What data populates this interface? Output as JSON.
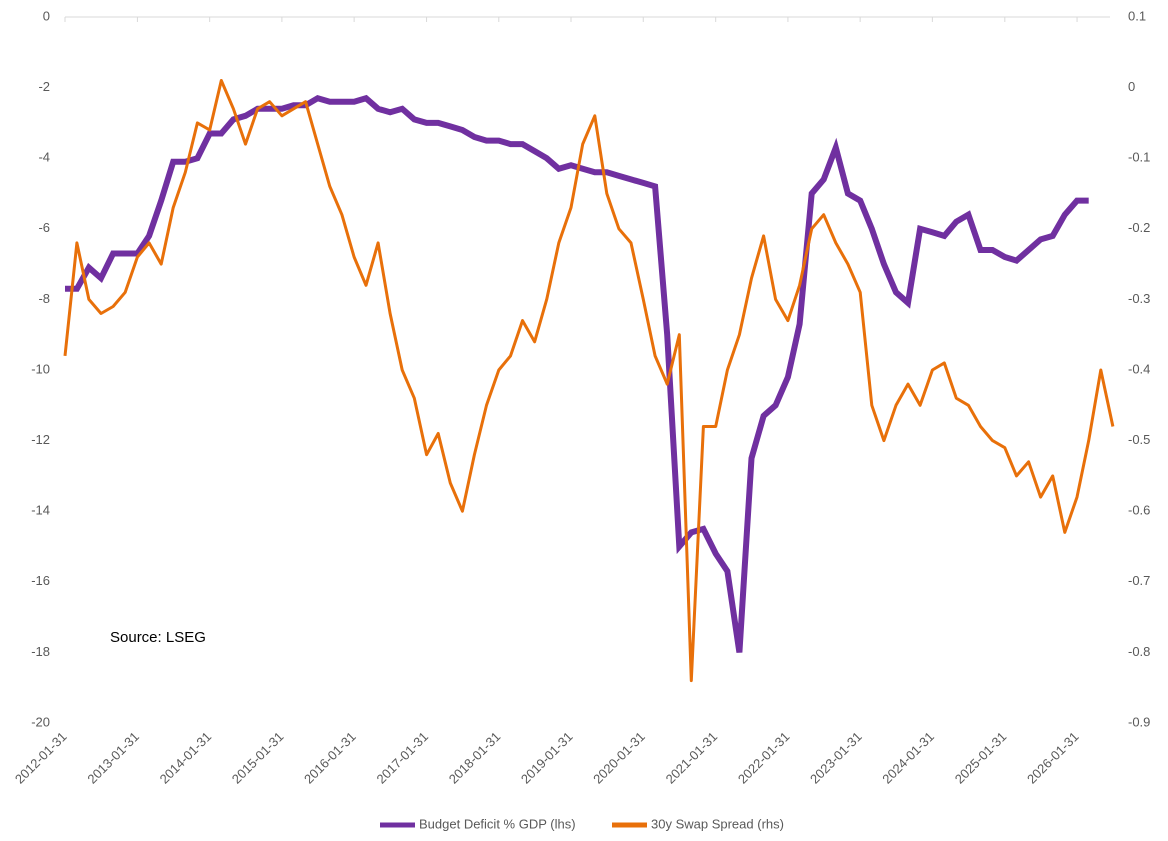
{
  "chart_data": {
    "type": "line",
    "annotations": [
      "Source: LSEG"
    ],
    "x": [
      "2012-01-31",
      "2012-03-31",
      "2012-05-31",
      "2012-07-31",
      "2012-09-30",
      "2012-11-30",
      "2013-01-31",
      "2013-03-31",
      "2013-05-31",
      "2013-07-31",
      "2013-09-30",
      "2013-11-30",
      "2014-01-31",
      "2014-03-31",
      "2014-05-31",
      "2014-07-31",
      "2014-09-30",
      "2014-11-30",
      "2015-01-31",
      "2015-03-31",
      "2015-05-31",
      "2015-07-31",
      "2015-09-30",
      "2015-11-30",
      "2016-01-31",
      "2016-03-31",
      "2016-05-31",
      "2016-07-31",
      "2016-09-30",
      "2016-11-30",
      "2017-01-31",
      "2017-03-31",
      "2017-05-31",
      "2017-07-31",
      "2017-09-30",
      "2017-11-30",
      "2018-01-31",
      "2018-03-31",
      "2018-05-31",
      "2018-07-31",
      "2018-09-30",
      "2018-11-30",
      "2019-01-31",
      "2019-03-31",
      "2019-05-31",
      "2019-07-31",
      "2019-09-30",
      "2019-11-30",
      "2020-01-31",
      "2020-03-31",
      "2020-05-31",
      "2020-07-31",
      "2020-09-30",
      "2020-11-30",
      "2021-01-31",
      "2021-03-31",
      "2021-05-31",
      "2021-07-31",
      "2021-09-30",
      "2021-11-30",
      "2022-01-31",
      "2022-03-31",
      "2022-05-31",
      "2022-07-31",
      "2022-09-30",
      "2022-11-30",
      "2023-01-31",
      "2023-03-31",
      "2023-05-31",
      "2023-07-31",
      "2023-09-30",
      "2023-11-30",
      "2024-01-31",
      "2024-03-31",
      "2024-05-31",
      "2024-07-31",
      "2024-09-30",
      "2024-11-30",
      "2025-01-31",
      "2025-03-31",
      "2025-05-31",
      "2025-07-31",
      "2025-09-30",
      "2025-11-30",
      "2026-01-31",
      "2026-03-31",
      "2026-05-31",
      "2026-07-31"
    ],
    "series": [
      {
        "name": "Budget Deficit % GDP (lhs)",
        "color": "#7030a0",
        "axis": "y",
        "values": [
          -7.7,
          -7.7,
          -7.1,
          -7.4,
          -6.7,
          -6.7,
          -6.7,
          -6.2,
          -5.2,
          -4.1,
          -4.1,
          -4.0,
          -3.3,
          -3.3,
          -2.9,
          -2.8,
          -2.6,
          -2.6,
          -2.6,
          -2.5,
          -2.5,
          -2.3,
          -2.4,
          -2.4,
          -2.4,
          -2.3,
          -2.6,
          -2.7,
          -2.6,
          -2.9,
          -3.0,
          -3.0,
          -3.1,
          -3.2,
          -3.4,
          -3.5,
          -3.5,
          -3.6,
          -3.6,
          -3.8,
          -4.0,
          -4.3,
          -4.2,
          -4.3,
          -4.4,
          -4.4,
          -4.5,
          -4.6,
          -4.7,
          -4.8,
          -9.0,
          -15.0,
          -14.6,
          -14.5,
          -15.2,
          -15.7,
          -18.0,
          -12.5,
          -11.3,
          -11.0,
          -10.2,
          -8.7,
          -5.0,
          -4.6,
          -3.7,
          -5.0,
          -5.2,
          -6.0,
          -7.0,
          -7.8,
          -8.1,
          -6.0,
          -6.1,
          -6.2,
          -5.8,
          -5.6,
          -6.6,
          -6.6,
          -6.8,
          -6.9,
          -6.6,
          -6.3,
          -6.2,
          -5.6,
          -5.2,
          -5.2,
          null,
          null
        ]
      },
      {
        "name": "30y Swap Spread (rhs)",
        "color": "#e8700a",
        "axis": "y2",
        "values": [
          -0.38,
          -0.22,
          -0.3,
          -0.32,
          -0.31,
          -0.29,
          -0.24,
          -0.22,
          -0.25,
          -0.17,
          -0.12,
          -0.05,
          -0.06,
          0.01,
          -0.03,
          -0.08,
          -0.03,
          -0.02,
          -0.04,
          -0.03,
          -0.02,
          -0.08,
          -0.14,
          -0.18,
          -0.24,
          -0.28,
          -0.22,
          -0.32,
          -0.4,
          -0.44,
          -0.52,
          -0.49,
          -0.56,
          -0.6,
          -0.52,
          -0.45,
          -0.4,
          -0.38,
          -0.33,
          -0.36,
          -0.3,
          -0.22,
          -0.17,
          -0.08,
          -0.04,
          -0.15,
          -0.2,
          -0.22,
          -0.3,
          -0.38,
          -0.42,
          -0.35,
          -0.84,
          -0.48,
          -0.48,
          -0.4,
          -0.35,
          -0.27,
          -0.21,
          -0.3,
          -0.33,
          -0.28,
          -0.2,
          -0.18,
          -0.22,
          -0.25,
          -0.29,
          -0.45,
          -0.5,
          -0.45,
          -0.42,
          -0.45,
          -0.4,
          -0.39,
          -0.44,
          -0.45,
          -0.48,
          -0.5,
          -0.51,
          -0.55,
          -0.53,
          -0.58,
          -0.55,
          -0.63,
          -0.58,
          -0.5,
          -0.4,
          -0.48
        ]
      }
    ],
    "xlim": [
      "2012-01-31",
      "2026-08-31"
    ],
    "xticks": [
      "2012-01-31",
      "2013-01-31",
      "2014-01-31",
      "2015-01-31",
      "2016-01-31",
      "2017-01-31",
      "2018-01-31",
      "2019-01-31",
      "2020-01-31",
      "2021-01-31",
      "2022-01-31",
      "2023-01-31",
      "2024-01-31",
      "2025-01-31",
      "2026-01-31"
    ],
    "ylim": [
      -20,
      0
    ],
    "yticks": [
      0,
      -2,
      -4,
      -6,
      -8,
      -10,
      -12,
      -14,
      -16,
      -18,
      -20
    ],
    "y2lim": [
      -0.9,
      0.1
    ],
    "y2ticks": [
      0.1,
      0,
      -0.1,
      -0.2,
      -0.3,
      -0.4,
      -0.5,
      -0.6,
      -0.7,
      -0.8,
      -0.9
    ],
    "grid": false,
    "legend": "bottom"
  }
}
